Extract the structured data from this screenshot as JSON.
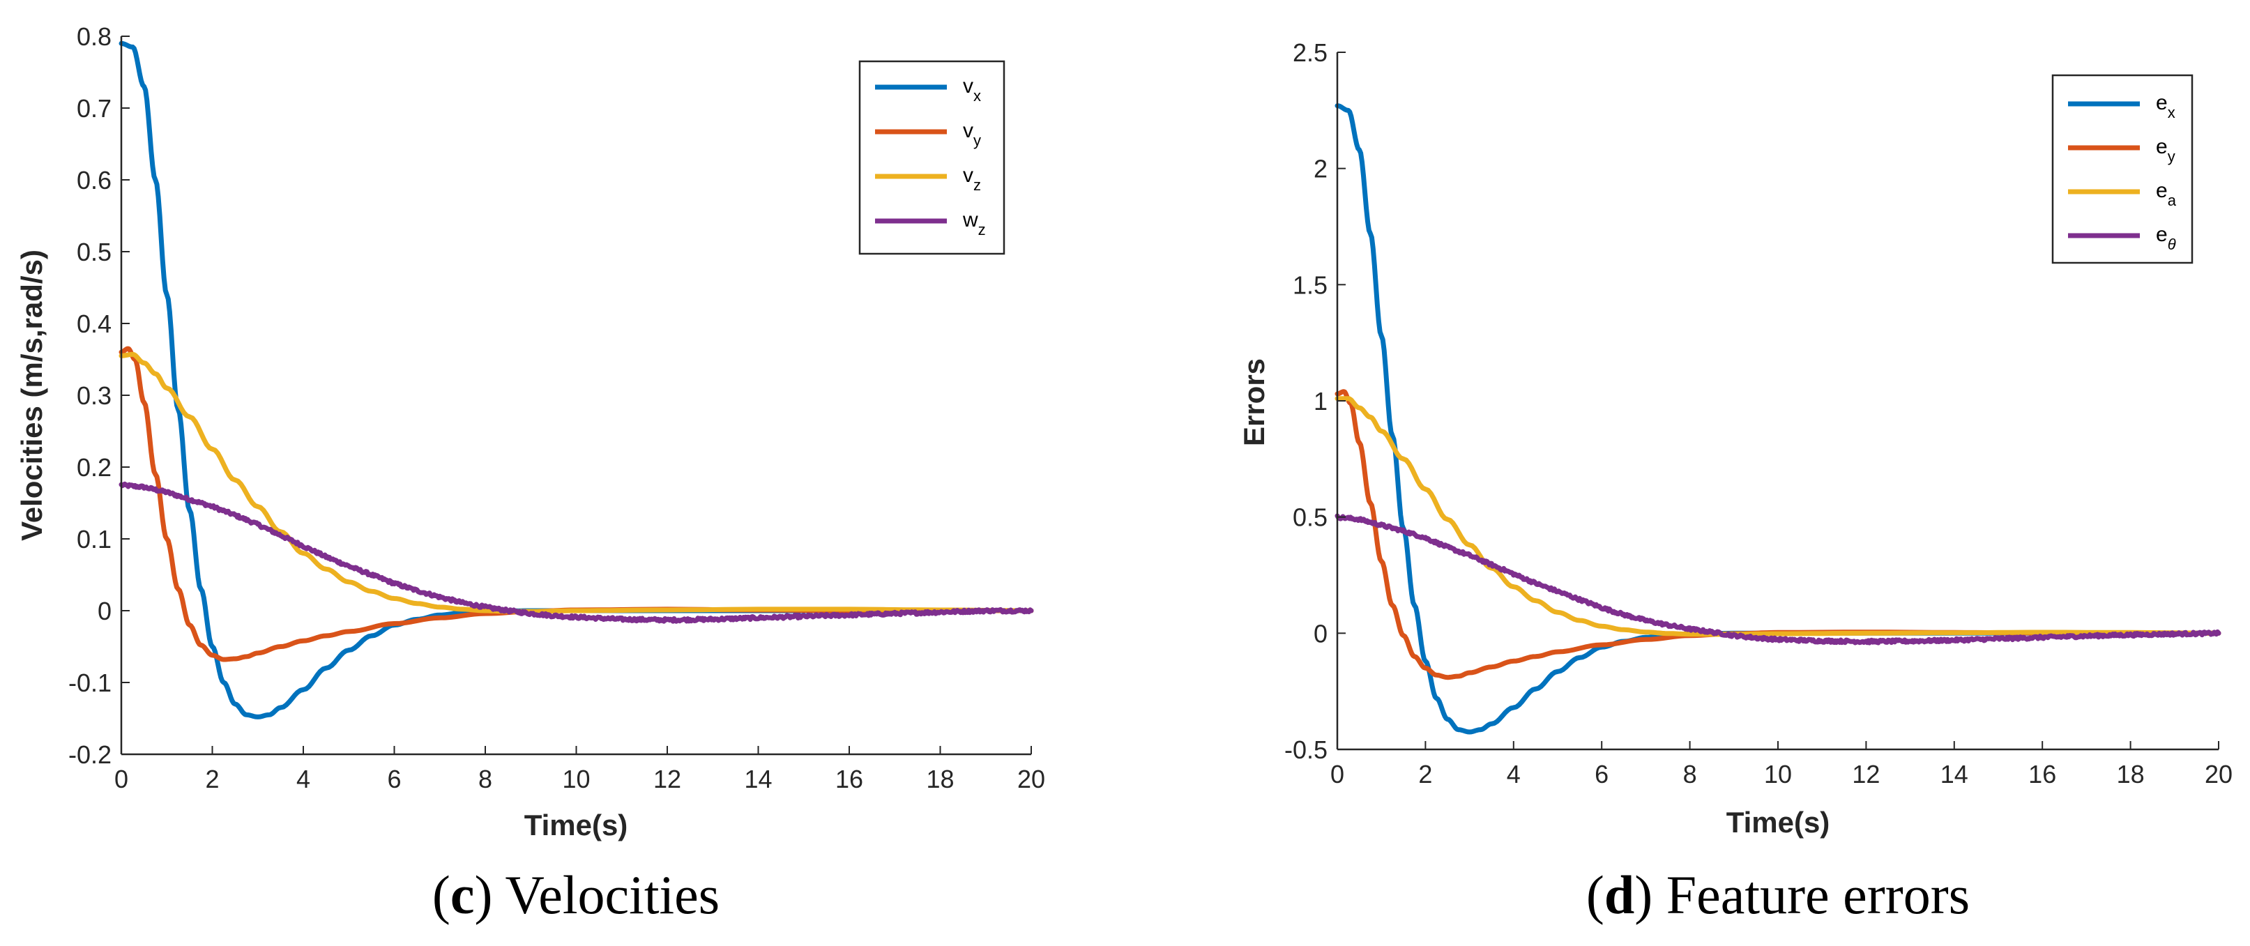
{
  "chart_data": [
    {
      "type": "line",
      "caption_letter": "c",
      "caption_text": "Velocities",
      "xlabel": "Time(s)",
      "ylabel": "Velocities (m/s,rad/s)",
      "xlim": [
        0,
        20
      ],
      "ylim": [
        -0.2,
        0.8
      ],
      "xticks": [
        0,
        2,
        4,
        6,
        8,
        10,
        12,
        14,
        16,
        18,
        20
      ],
      "yticks": [
        -0.2,
        -0.1,
        0,
        0.1,
        0.2,
        0.3,
        0.4,
        0.5,
        0.6,
        0.7,
        0.8
      ],
      "ytick_labels": [
        "-0.2",
        "-0.1",
        "0",
        "0.1",
        "0.2",
        "0.3",
        "0.4",
        "0.5",
        "0.6",
        "0.7",
        "0.8"
      ],
      "legend_position": "top-right",
      "series": [
        {
          "name": "v",
          "sub": "x",
          "color": "#0072BD",
          "x": [
            0,
            0.25,
            0.5,
            0.75,
            1,
            1.25,
            1.5,
            1.75,
            2,
            2.25,
            2.5,
            2.75,
            3,
            3.25,
            3.5,
            4,
            4.5,
            5,
            5.5,
            6,
            6.5,
            7,
            7.5,
            8,
            9,
            10,
            12,
            14,
            16,
            18,
            20
          ],
          "values": [
            0.79,
            0.785,
            0.73,
            0.6,
            0.44,
            0.28,
            0.14,
            0.03,
            -0.05,
            -0.1,
            -0.13,
            -0.145,
            -0.148,
            -0.145,
            -0.135,
            -0.11,
            -0.08,
            -0.055,
            -0.035,
            -0.02,
            -0.012,
            -0.006,
            -0.003,
            -0.001,
            0,
            0,
            0,
            0,
            0,
            0,
            0
          ]
        },
        {
          "name": "v",
          "sub": "y",
          "color": "#D95319",
          "x": [
            0,
            0.15,
            0.3,
            0.5,
            0.75,
            1,
            1.25,
            1.5,
            1.75,
            2,
            2.25,
            2.5,
            2.75,
            3,
            3.5,
            4,
            4.5,
            5,
            6,
            7,
            8,
            9,
            10,
            12,
            14,
            16,
            18,
            20
          ],
          "values": [
            0.36,
            0.365,
            0.35,
            0.29,
            0.19,
            0.1,
            0.03,
            -0.02,
            -0.048,
            -0.062,
            -0.068,
            -0.067,
            -0.064,
            -0.059,
            -0.05,
            -0.042,
            -0.035,
            -0.029,
            -0.018,
            -0.01,
            -0.004,
            -0.001,
            0.001,
            0.002,
            0.001,
            0,
            0,
            0
          ]
        },
        {
          "name": "v",
          "sub": "z",
          "color": "#EDB120",
          "x": [
            0,
            0.25,
            0.5,
            0.75,
            1,
            1.5,
            2,
            2.5,
            3,
            3.5,
            4,
            4.5,
            5,
            5.5,
            6,
            6.5,
            7,
            7.5,
            8,
            8.5,
            9,
            10,
            12,
            14,
            16,
            18,
            20
          ],
          "values": [
            0.355,
            0.357,
            0.345,
            0.33,
            0.31,
            0.27,
            0.225,
            0.182,
            0.145,
            0.11,
            0.08,
            0.058,
            0.04,
            0.027,
            0.017,
            0.01,
            0.005,
            0.002,
            0.0,
            -0.001,
            -0.001,
            0.0,
            0.001,
            0.002,
            0.002,
            0.001,
            0
          ]
        },
        {
          "name": "w",
          "sub": "z",
          "color": "#7E2F8E",
          "noise": 0.004,
          "x": [
            0,
            0.5,
            1,
            1.5,
            2,
            2.5,
            3,
            3.5,
            4,
            4.5,
            5,
            5.5,
            6,
            6.5,
            7,
            7.5,
            8,
            8.5,
            9,
            9.5,
            10,
            11,
            12,
            13,
            14,
            15,
            16,
            17,
            18,
            19,
            20
          ],
          "values": [
            0.175,
            0.172,
            0.165,
            0.155,
            0.145,
            0.133,
            0.12,
            0.105,
            0.09,
            0.075,
            0.062,
            0.05,
            0.038,
            0.028,
            0.019,
            0.011,
            0.005,
            0.0,
            -0.004,
            -0.007,
            -0.009,
            -0.012,
            -0.013,
            -0.012,
            -0.01,
            -0.008,
            -0.006,
            -0.004,
            -0.002,
            0.0,
            0.0
          ]
        }
      ]
    },
    {
      "type": "line",
      "caption_letter": "d",
      "caption_text": "Feature errors",
      "xlabel": "Time(s)",
      "ylabel": "Errors",
      "xlim": [
        0,
        20
      ],
      "ylim": [
        -0.5,
        2.5
      ],
      "xticks": [
        0,
        2,
        4,
        6,
        8,
        10,
        12,
        14,
        16,
        18,
        20
      ],
      "yticks": [
        -0.5,
        0,
        0.5,
        1,
        1.5,
        2,
        2.5
      ],
      "ytick_labels": [
        "-0.5",
        "0",
        "0.5",
        "1",
        "1.5",
        "2",
        "2.5"
      ],
      "legend_position": "top-right",
      "series": [
        {
          "name": "e",
          "sub": "x",
          "color": "#0072BD",
          "x": [
            0,
            0.25,
            0.5,
            0.75,
            1,
            1.25,
            1.5,
            1.75,
            2,
            2.25,
            2.5,
            2.75,
            3,
            3.25,
            3.5,
            4,
            4.5,
            5,
            5.5,
            6,
            6.5,
            7,
            7.5,
            8,
            9,
            10,
            12,
            14,
            16,
            18,
            20
          ],
          "values": [
            2.27,
            2.25,
            2.08,
            1.72,
            1.28,
            0.85,
            0.45,
            0.12,
            -0.12,
            -0.28,
            -0.37,
            -0.415,
            -0.425,
            -0.415,
            -0.39,
            -0.32,
            -0.24,
            -0.165,
            -0.105,
            -0.06,
            -0.035,
            -0.018,
            -0.008,
            -0.003,
            0,
            0,
            0,
            0,
            0,
            0,
            0
          ]
        },
        {
          "name": "e",
          "sub": "y",
          "color": "#D95319",
          "x": [
            0,
            0.15,
            0.3,
            0.5,
            0.75,
            1,
            1.25,
            1.5,
            1.75,
            2,
            2.25,
            2.5,
            2.75,
            3,
            3.5,
            4,
            4.5,
            5,
            6,
            7,
            8,
            9,
            10,
            12,
            14,
            16,
            18,
            20
          ],
          "values": [
            1.03,
            1.04,
            0.99,
            0.82,
            0.56,
            0.31,
            0.12,
            -0.01,
            -0.1,
            -0.15,
            -0.18,
            -0.19,
            -0.185,
            -0.17,
            -0.145,
            -0.12,
            -0.1,
            -0.08,
            -0.05,
            -0.027,
            -0.01,
            -0.002,
            0.003,
            0.005,
            0.003,
            0.001,
            0,
            0
          ]
        },
        {
          "name": "e",
          "sub": "a",
          "color": "#EDB120",
          "x": [
            0,
            0.25,
            0.5,
            0.75,
            1,
            1.5,
            2,
            2.5,
            3,
            3.5,
            4,
            4.5,
            5,
            5.5,
            6,
            6.5,
            7,
            7.5,
            8,
            8.5,
            9,
            10,
            12,
            14,
            16,
            18,
            20
          ],
          "values": [
            1.01,
            1.01,
            0.97,
            0.93,
            0.87,
            0.75,
            0.62,
            0.49,
            0.38,
            0.28,
            0.2,
            0.14,
            0.09,
            0.055,
            0.03,
            0.015,
            0.005,
            -0.001,
            -0.004,
            -0.005,
            -0.004,
            -0.002,
            0.0,
            0.002,
            0.004,
            0.003,
            0
          ]
        },
        {
          "name": "e",
          "sub": "θ",
          "color": "#7E2F8E",
          "noise": 0.012,
          "x": [
            0,
            0.5,
            1,
            1.5,
            2,
            2.5,
            3,
            3.5,
            4,
            4.5,
            5,
            5.5,
            6,
            6.5,
            7,
            7.5,
            8,
            8.5,
            9,
            9.5,
            10,
            11,
            12,
            13,
            14,
            15,
            16,
            17,
            18,
            19,
            20
          ],
          "values": [
            0.5,
            0.49,
            0.465,
            0.44,
            0.41,
            0.37,
            0.335,
            0.295,
            0.255,
            0.215,
            0.18,
            0.145,
            0.11,
            0.08,
            0.055,
            0.035,
            0.018,
            0.005,
            -0.01,
            -0.02,
            -0.027,
            -0.033,
            -0.036,
            -0.034,
            -0.03,
            -0.024,
            -0.018,
            -0.012,
            -0.007,
            -0.003,
            0.0
          ]
        }
      ]
    }
  ]
}
